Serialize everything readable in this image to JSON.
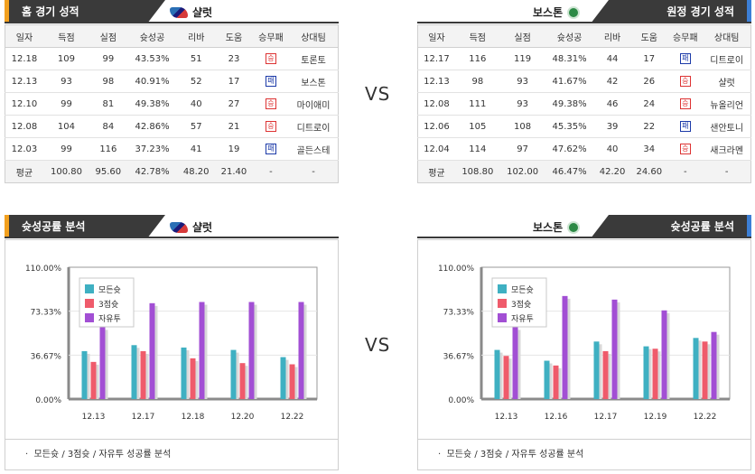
{
  "home": {
    "header": "홈 경기 성적",
    "team": "샬럿",
    "columns": [
      "일자",
      "득점",
      "실점",
      "슛성공",
      "리바",
      "도움",
      "승무패",
      "상대팀"
    ],
    "rows": [
      {
        "date": "12.18",
        "pts": "109",
        "opp": "99",
        "fg": "43.53%",
        "reb": "51",
        "ast": "23",
        "res": "승",
        "rt": "win",
        "vs": "토론토"
      },
      {
        "date": "12.13",
        "pts": "93",
        "opp": "98",
        "fg": "40.91%",
        "reb": "52",
        "ast": "17",
        "res": "패",
        "rt": "loss",
        "vs": "보스톤"
      },
      {
        "date": "12.10",
        "pts": "99",
        "opp": "81",
        "fg": "49.38%",
        "reb": "40",
        "ast": "27",
        "res": "승",
        "rt": "win",
        "vs": "마이애미"
      },
      {
        "date": "12.08",
        "pts": "104",
        "opp": "84",
        "fg": "42.86%",
        "reb": "57",
        "ast": "21",
        "res": "승",
        "rt": "win",
        "vs": "디트로이"
      },
      {
        "date": "12.03",
        "pts": "99",
        "opp": "116",
        "fg": "37.23%",
        "reb": "41",
        "ast": "19",
        "res": "패",
        "rt": "loss",
        "vs": "골든스테"
      }
    ],
    "avg": {
      "label": "평균",
      "pts": "100.80",
      "opp": "95.60",
      "fg": "42.78%",
      "reb": "48.20",
      "ast": "21.40",
      "res": "-",
      "vs": "-"
    }
  },
  "away": {
    "header": "원정 경기 성적",
    "team": "보스톤",
    "columns": [
      "일자",
      "득점",
      "실점",
      "슛성공",
      "리바",
      "도움",
      "승무패",
      "상대팀"
    ],
    "rows": [
      {
        "date": "12.17",
        "pts": "116",
        "opp": "119",
        "fg": "48.31%",
        "reb": "44",
        "ast": "17",
        "res": "패",
        "rt": "loss",
        "vs": "디트로이"
      },
      {
        "date": "12.13",
        "pts": "98",
        "opp": "93",
        "fg": "41.67%",
        "reb": "42",
        "ast": "26",
        "res": "승",
        "rt": "win",
        "vs": "샬럿"
      },
      {
        "date": "12.08",
        "pts": "111",
        "opp": "93",
        "fg": "49.38%",
        "reb": "46",
        "ast": "24",
        "res": "승",
        "rt": "win",
        "vs": "뉴올리언"
      },
      {
        "date": "12.06",
        "pts": "105",
        "opp": "108",
        "fg": "45.35%",
        "reb": "39",
        "ast": "22",
        "res": "패",
        "rt": "loss",
        "vs": "샌안토니"
      },
      {
        "date": "12.04",
        "pts": "114",
        "opp": "97",
        "fg": "47.62%",
        "reb": "40",
        "ast": "34",
        "res": "승",
        "rt": "win",
        "vs": "새크라멘"
      }
    ],
    "avg": {
      "label": "평균",
      "pts": "108.80",
      "opp": "102.00",
      "fg": "46.47%",
      "reb": "42.20",
      "ast": "24.60",
      "res": "-",
      "vs": "-"
    }
  },
  "vs_label": "VS",
  "home_chart": {
    "header": "슛성공률 분석",
    "team": "샬럿",
    "footer": "모든슛 / 3점슛 / 자유투 성공률 분석"
  },
  "away_chart": {
    "header": "슛성공률 분석",
    "team": "보스톤",
    "footer": "모든슛 / 3점슛 / 자유투 성공률 분석"
  },
  "chart_data": [
    {
      "type": "bar",
      "categories": [
        "12.13",
        "12.17",
        "12.18",
        "12.20",
        "12.22"
      ],
      "yticks": [
        "0.00%",
        "36.67%",
        "73.33%",
        "110.00%"
      ],
      "ylim": [
        0,
        110
      ],
      "series": [
        {
          "name": "모든슛",
          "color": "#3fb0c2",
          "values": [
            40,
            45,
            43,
            41,
            35
          ]
        },
        {
          "name": "3점슛",
          "color": "#ef5b6b",
          "values": [
            31,
            40,
            34,
            30,
            29
          ]
        },
        {
          "name": "자유투",
          "color": "#a24fd4",
          "values": [
            60,
            80,
            81,
            81,
            81
          ]
        }
      ]
    },
    {
      "type": "bar",
      "categories": [
        "12.13",
        "12.16",
        "12.17",
        "12.19",
        "12.22"
      ],
      "yticks": [
        "0.00%",
        "36.67%",
        "73.33%",
        "110.00%"
      ],
      "ylim": [
        0,
        110
      ],
      "series": [
        {
          "name": "모든슛",
          "color": "#3fb0c2",
          "values": [
            41,
            32,
            48,
            44,
            51
          ]
        },
        {
          "name": "3점슛",
          "color": "#ef5b6b",
          "values": [
            36,
            28,
            40,
            42,
            48
          ]
        },
        {
          "name": "자유투",
          "color": "#a24fd4",
          "values": [
            60,
            86,
            83,
            74,
            56
          ]
        }
      ]
    }
  ]
}
